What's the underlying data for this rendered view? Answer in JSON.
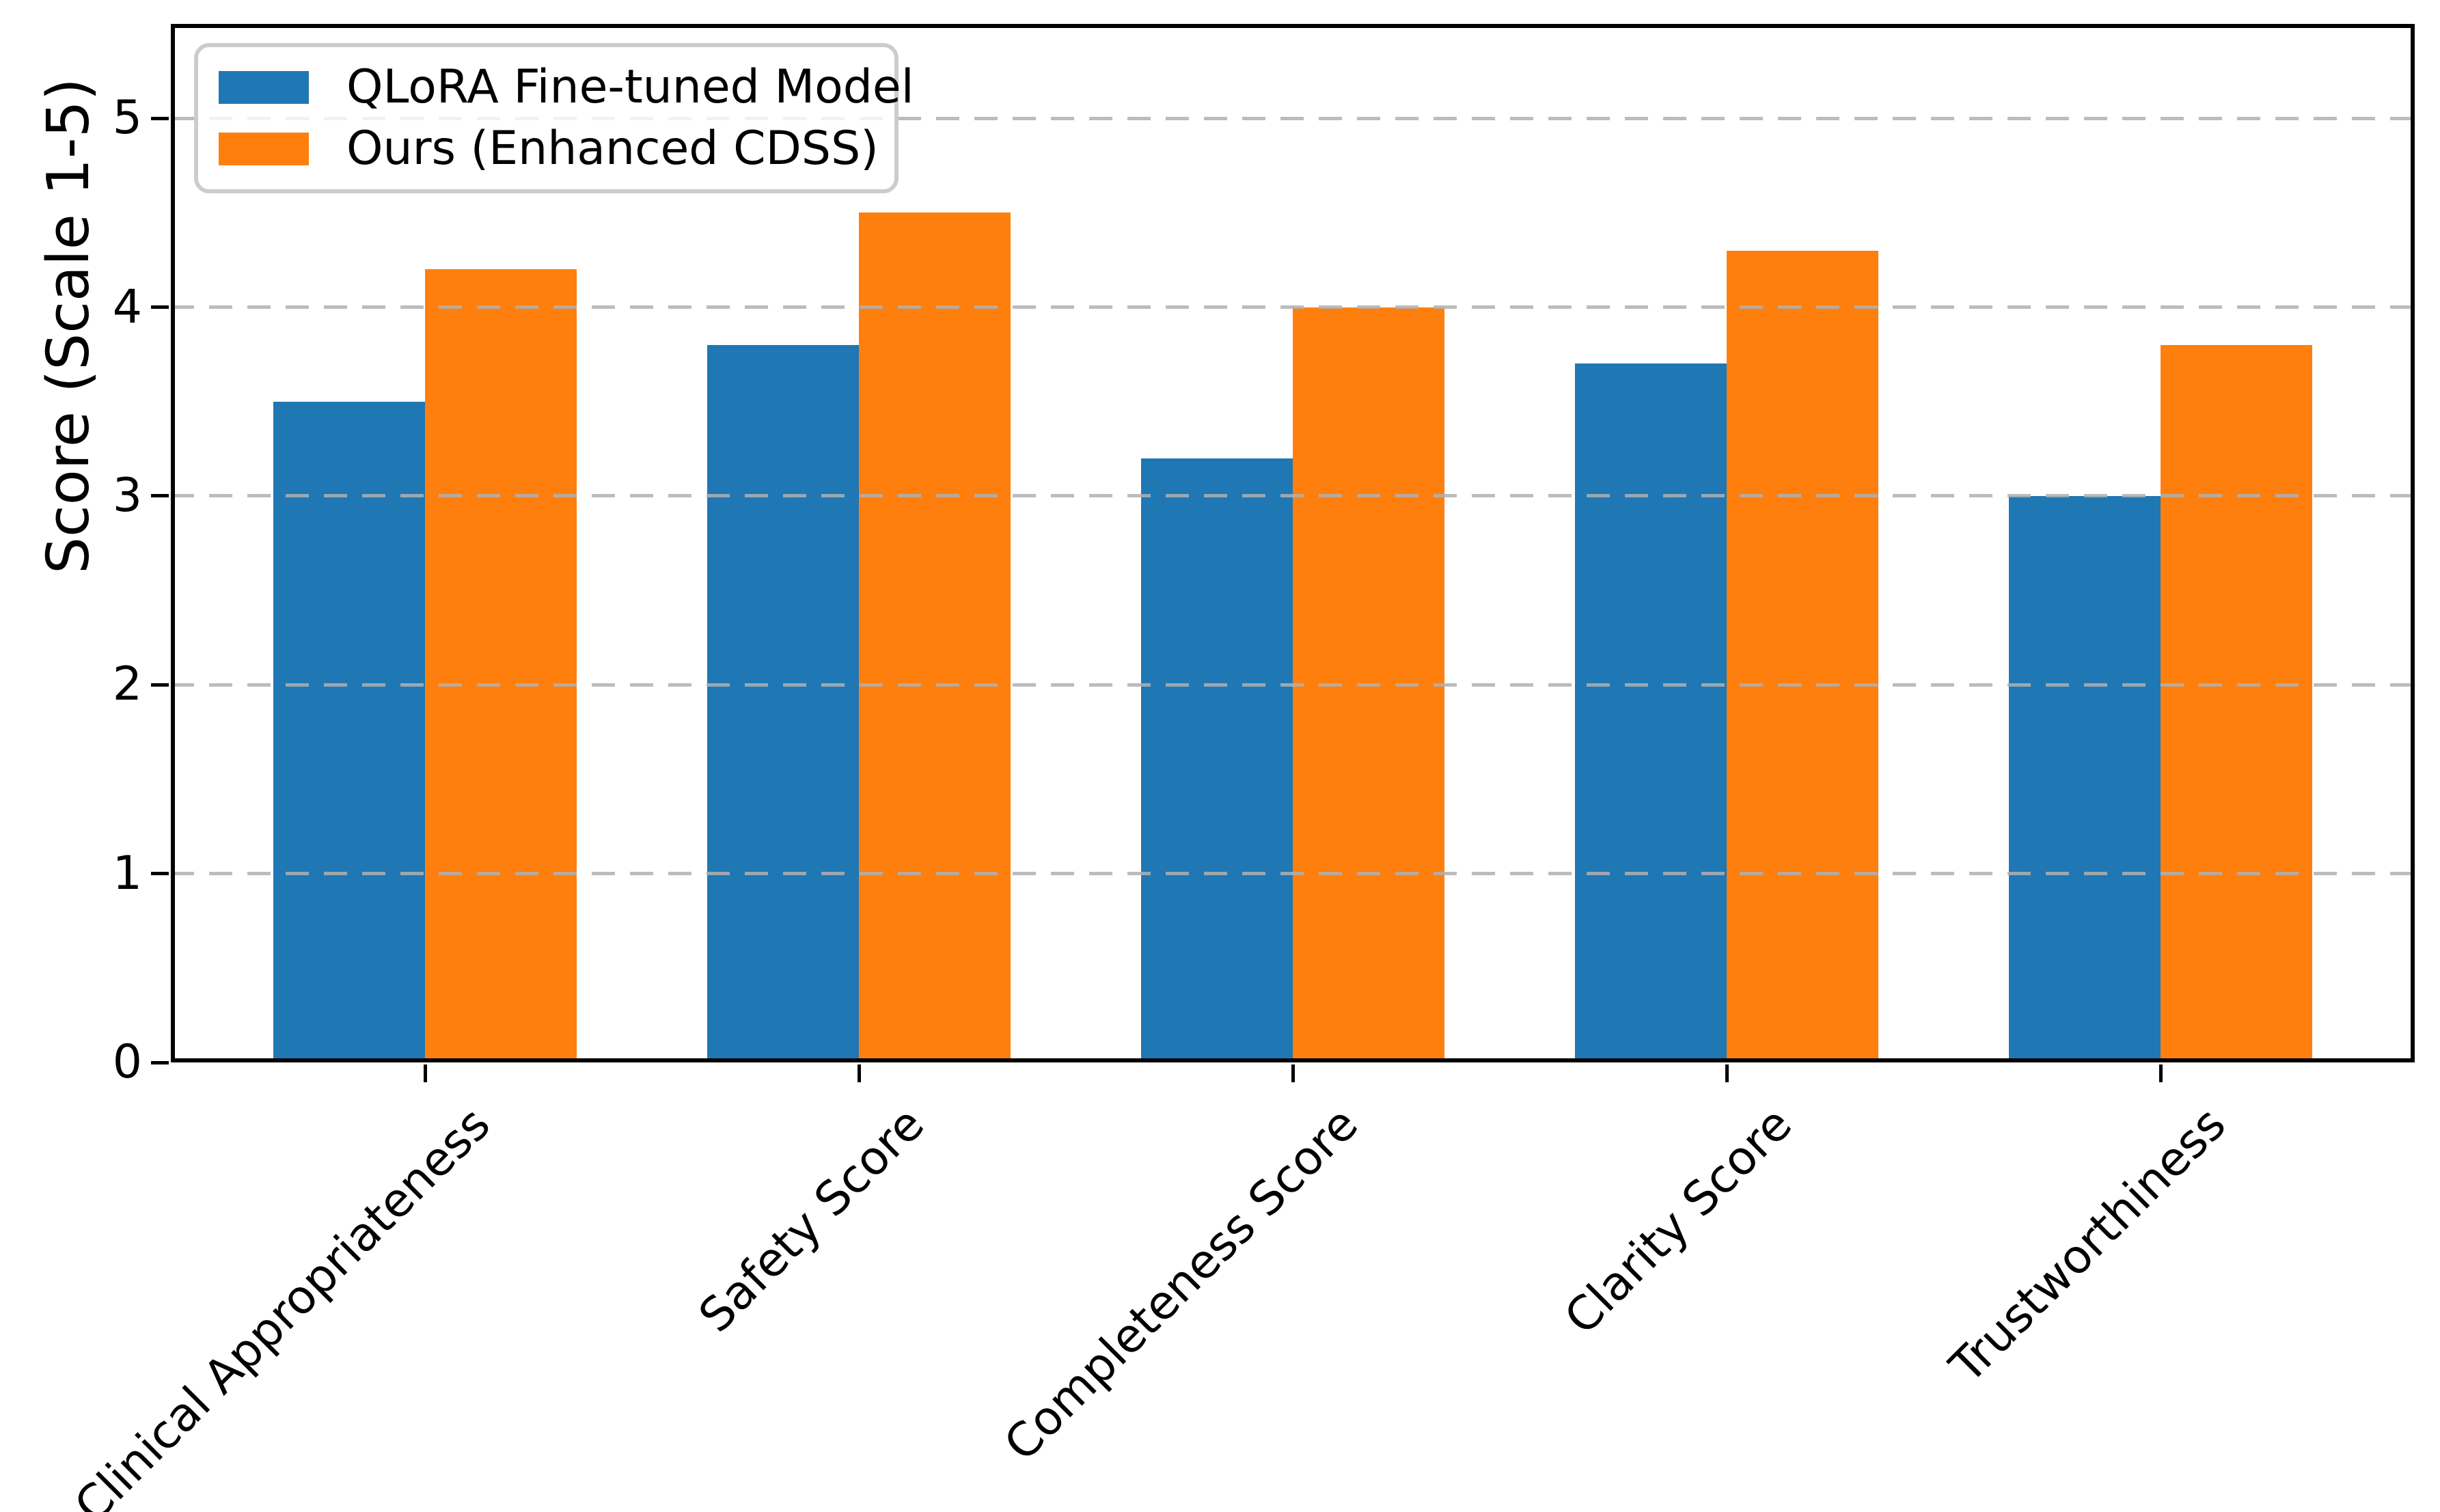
{
  "chart_data": {
    "type": "bar",
    "title": "",
    "categories": [
      "Clinical Appropriateness",
      "Safety Score",
      "Completeness Score",
      "Clarity Score",
      "Trustworthiness"
    ],
    "series": [
      {
        "name": "QLoRA Fine-tuned Model",
        "color": "#1f77b4",
        "values": [
          3.5,
          3.8,
          3.2,
          3.7,
          3.0
        ]
      },
      {
        "name": "Ours (Enhanced CDSS)",
        "color": "#ff7f0e",
        "values": [
          4.2,
          4.5,
          4.0,
          4.3,
          3.8
        ]
      }
    ],
    "xlabel": "",
    "ylabel": "Score (Scale 1-5)",
    "ylim": [
      0,
      5.5
    ],
    "yticks": [
      0,
      1,
      2,
      3,
      4,
      5
    ],
    "grid": "dashed-horizontal-over-bars",
    "legend_position": "upper-left",
    "bar_width_ratio": 0.35
  },
  "colors": {
    "grid": "#b0b0b0",
    "spine": "#000000",
    "legend_border": "#cccccc",
    "background": "#ffffff"
  }
}
